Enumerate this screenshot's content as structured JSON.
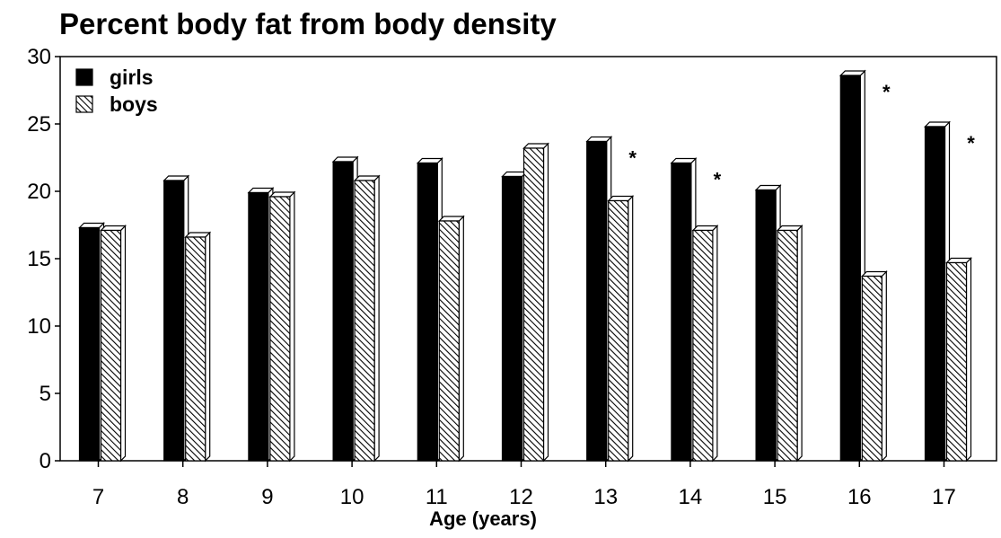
{
  "chart_data": {
    "type": "bar",
    "title": "Percent body fat from body density",
    "xlabel": "Age (years)",
    "ylabel": "",
    "categories": [
      "7",
      "8",
      "9",
      "10",
      "11",
      "12",
      "13",
      "14",
      "15",
      "16",
      "17"
    ],
    "series": [
      {
        "name": "girls",
        "values": [
          17.3,
          20.8,
          19.9,
          22.2,
          22.1,
          21.1,
          23.7,
          22.1,
          20.1,
          28.6,
          24.8
        ],
        "color": "#000000",
        "pattern": "solid"
      },
      {
        "name": "boys",
        "values": [
          17.1,
          16.6,
          19.6,
          20.8,
          17.8,
          23.2,
          19.3,
          17.1,
          17.1,
          13.7,
          14.7
        ],
        "color": "#000000",
        "pattern": "diagonal-hatch"
      }
    ],
    "significance_marker": "*",
    "significant_categories": [
      "13",
      "14",
      "16",
      "17"
    ],
    "yticks": [
      "0",
      "5",
      "10",
      "15",
      "20",
      "25",
      "30"
    ],
    "ylim": [
      0,
      30
    ],
    "grid": false,
    "legend_position": "top-left",
    "style": "3d-bars"
  }
}
